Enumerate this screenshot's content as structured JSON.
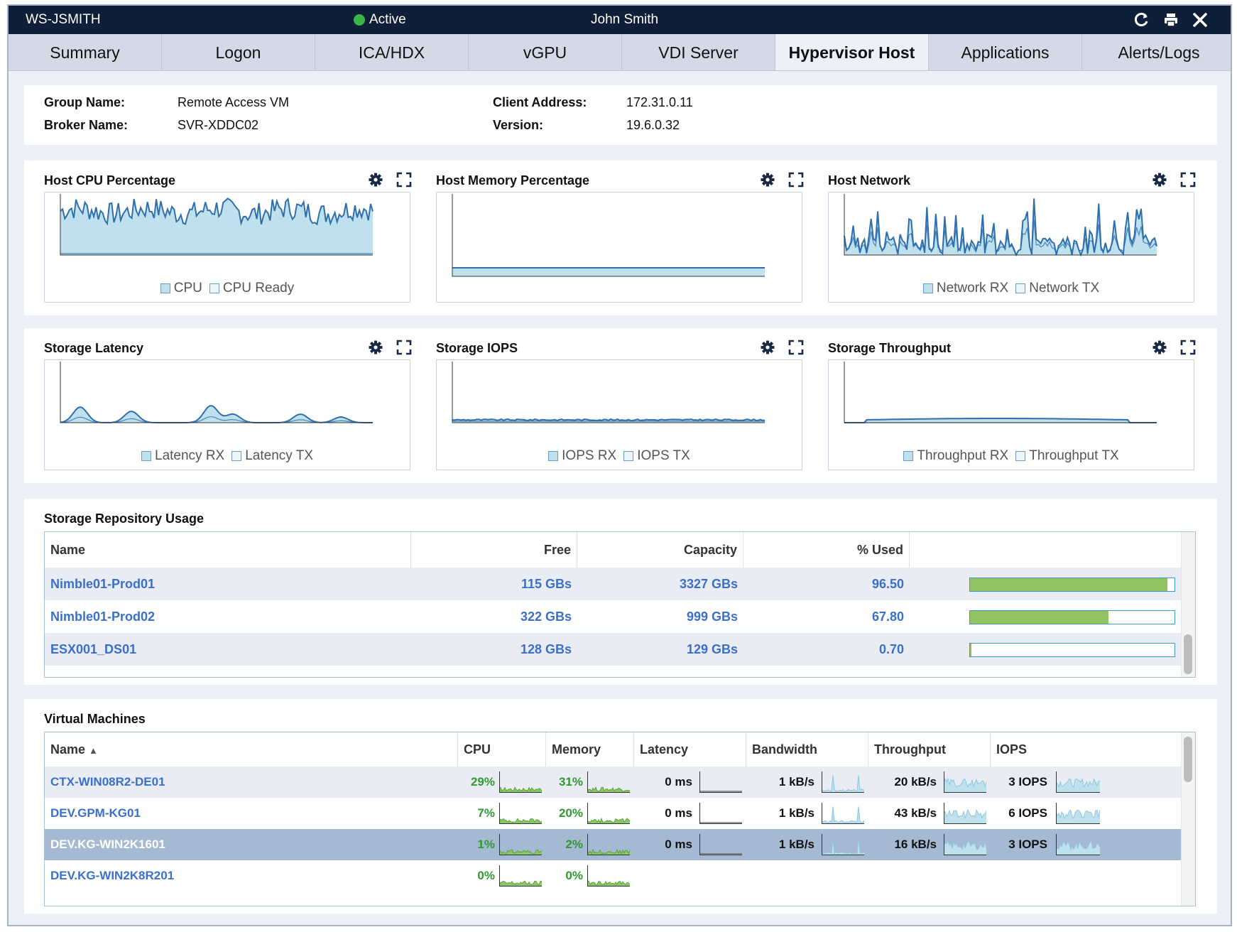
{
  "titlebar": {
    "host": "WS-JSMITH",
    "status": "Active",
    "user": "John Smith"
  },
  "tabs": [
    "Summary",
    "Logon",
    "ICA/HDX",
    "vGPU",
    "VDI Server",
    "Hypervisor Host",
    "Applications",
    "Alerts/Logs"
  ],
  "active_tab": "Hypervisor Host",
  "info": {
    "group_name_label": "Group Name:",
    "group_name": "Remote Access VM",
    "broker_name_label": "Broker Name:",
    "broker_name": "SVR-XDDC02",
    "client_address_label": "Client Address:",
    "client_address": "172.31.0.11",
    "version_label": "Version:",
    "version": "19.6.0.32"
  },
  "charts": {
    "cpu": {
      "title": "Host CPU Percentage",
      "legend": [
        "CPU",
        "CPU Ready"
      ]
    },
    "memory": {
      "title": "Host Memory Percentage",
      "legend": []
    },
    "network": {
      "title": "Host Network",
      "legend": [
        "Network RX",
        "Network TX"
      ]
    },
    "latency": {
      "title": "Storage Latency",
      "legend": [
        "Latency RX",
        "Latency TX"
      ]
    },
    "iops": {
      "title": "Storage IOPS",
      "legend": [
        "IOPS RX",
        "IOPS TX"
      ]
    },
    "throughput": {
      "title": "Storage Throughput",
      "legend": [
        "Throughput RX",
        "Throughput TX"
      ]
    }
  },
  "storage": {
    "title": "Storage Repository Usage",
    "columns": [
      "Name",
      "Free",
      "Capacity",
      "% Used"
    ],
    "rows": [
      {
        "name": "Nimble01-Prod01",
        "free": "115 GBs",
        "capacity": "3327 GBs",
        "used": "96.50"
      },
      {
        "name": "Nimble01-Prod02",
        "free": "322 GBs",
        "capacity": "999 GBs",
        "used": "67.80"
      },
      {
        "name": "ESX001_DS01",
        "free": "128 GBs",
        "capacity": "129 GBs",
        "used": "0.70"
      }
    ]
  },
  "vms": {
    "title": "Virtual Machines",
    "columns": [
      "Name",
      "CPU",
      "Memory",
      "Latency",
      "Bandwidth",
      "Throughput",
      "IOPS"
    ],
    "sort_indicator": "▲",
    "rows": [
      {
        "name": "CTX-WIN08R2-DE01",
        "cpu": "29%",
        "memory": "31%",
        "latency": "0 ms",
        "bandwidth": "1 kB/s",
        "throughput": "20 kB/s",
        "iops": "3 IOPS"
      },
      {
        "name": "DEV.GPM-KG01",
        "cpu": "7%",
        "memory": "20%",
        "latency": "0 ms",
        "bandwidth": "1 kB/s",
        "throughput": "43 kB/s",
        "iops": "6 IOPS"
      },
      {
        "name": "DEV.KG-WIN2K1601",
        "cpu": "1%",
        "memory": "2%",
        "latency": "0 ms",
        "bandwidth": "1 kB/s",
        "throughput": "16 kB/s",
        "iops": "3 IOPS",
        "selected": true
      },
      {
        "name": "DEV.KG-WIN2K8R201",
        "cpu": "0%",
        "memory": "0%",
        "latency": "",
        "bandwidth": "",
        "throughput": "",
        "iops": ""
      }
    ]
  },
  "colors": {
    "titlebar": "#0f1f38",
    "link": "#3a70c9",
    "bar_fill": "#92c463",
    "chart_fill": "#bfe1ee",
    "chart_line": "#2f6fae",
    "selected_row": "#a6b9d3"
  },
  "icons": [
    "refresh-icon",
    "print-icon",
    "close-icon",
    "gear-icon",
    "expand-icon",
    "sort-ascending-icon"
  ]
}
